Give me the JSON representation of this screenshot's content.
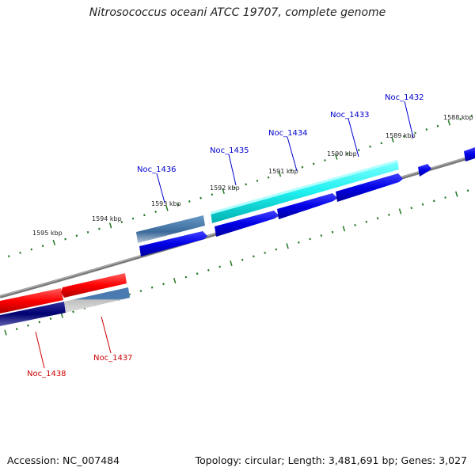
{
  "title": "Nitrosococcus oceani ATCC 19707, complete genome",
  "footer": {
    "accession": "Accession: NC_007484",
    "summary": "Topology: circular; Length: 3,481,691 bp; Genes: 3,027"
  },
  "colors": {
    "label_forward": "#0000cc",
    "label_reverse": "#cc0000",
    "tick": "#227722",
    "backbone": "#808080"
  },
  "kbp_labels": [
    "1588 kbp",
    "1589 kbp",
    "1590 kbp",
    "1591 kbp",
    "1592 kbp",
    "1593 kbp",
    "1594 kbp",
    "1595 kbp"
  ],
  "gene_labels": [
    {
      "name": "Noc_1432",
      "strand": "forward"
    },
    {
      "name": "Noc_1433",
      "strand": "forward"
    },
    {
      "name": "Noc_1434",
      "strand": "forward"
    },
    {
      "name": "Noc_1435",
      "strand": "forward"
    },
    {
      "name": "Noc_1436",
      "strand": "forward"
    },
    {
      "name": "Noc_1437",
      "strand": "reverse"
    },
    {
      "name": "Noc_1438",
      "strand": "reverse"
    }
  ]
}
